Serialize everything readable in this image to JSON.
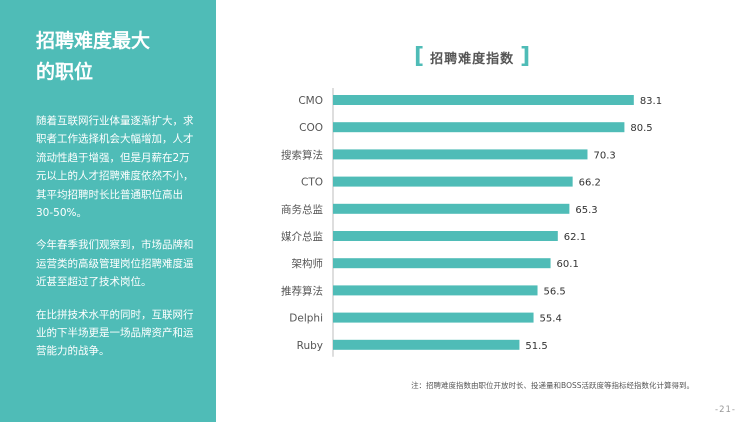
{
  "sidebar": {
    "title_line1": "招聘难度最大",
    "title_line2": "的职位",
    "paragraphs": [
      "随着互联网行业体量逐渐扩大，求职者工作选择机会大幅增加，人才流动性趋于增强，但是月薪在2万元以上的人才招聘难度依然不小，其平均招聘时长比普通职位高出30-50%。",
      "今年春季我们观察到，市场品牌和运营类的高级管理岗位招聘难度逼近甚至超过了技术岗位。",
      "在比拼技术水平的同时，互联网行业的下半场更是一场品牌资产和运营能力的战争。"
    ]
  },
  "chart_title": {
    "left_bracket": "[",
    "text": "招聘难度指数",
    "right_bracket": "]"
  },
  "chart_data": {
    "type": "bar",
    "orientation": "horizontal",
    "title": "招聘难度指数",
    "categories": [
      "CMO",
      "COO",
      "搜索算法",
      "CTO",
      "商务总监",
      "媒介总监",
      "架构师",
      "推荐算法",
      "Delphi",
      "Ruby"
    ],
    "values": [
      83.1,
      80.5,
      70.3,
      66.2,
      65.3,
      62.1,
      60.1,
      56.5,
      55.4,
      51.5
    ],
    "xlim": [
      0,
      100
    ],
    "grid": false,
    "bar_color": "#4fbcb7"
  },
  "footnote": "注：招聘难度指数由职位开放时长、投递量和BOSS活跃度等指标经指数化计算得到。",
  "page_number": "-21-"
}
